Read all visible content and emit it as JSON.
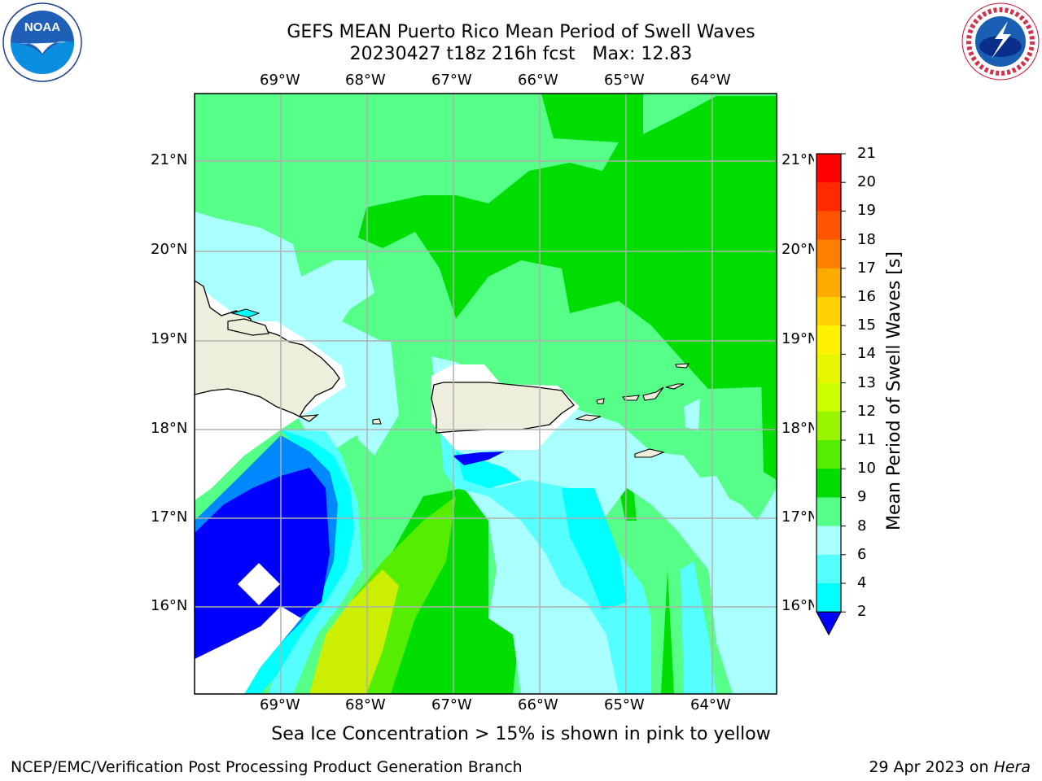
{
  "header": {
    "title_line1": "GEFS MEAN Puerto Rico Mean Period of Swell Waves",
    "title_line2": "20230427 t18z 216h fcst   Max: 12.83"
  },
  "logos": {
    "left": {
      "name": "noaa-logo",
      "text": "NOAA",
      "ring_text": "NATIONAL OCEANIC AND ATMOSPHERIC ADMINISTRATION · U.S. DEPARTMENT OF COMMERCE"
    },
    "right": {
      "name": "nws-logo",
      "ring_text": "NATIONAL WEATHER SERVICE"
    }
  },
  "map": {
    "longitude_labels": [
      "69°W",
      "68°W",
      "67°W",
      "66°W",
      "65°W",
      "64°W"
    ],
    "latitude_labels": [
      "21°N",
      "20°N",
      "19°N",
      "18°N",
      "17°N",
      "16°N"
    ],
    "extent": {
      "lon_min": -70.0,
      "lon_max": -63.25,
      "lat_min": 15.0,
      "lat_max": 21.75
    },
    "variable": "Mean Period of Swell Waves",
    "max_value": 12.83
  },
  "colorbar": {
    "label": "Mean Period of Swell Waves [s]",
    "ticks": [
      "21",
      "20",
      "19",
      "18",
      "17",
      "16",
      "15",
      "14",
      "13",
      "12",
      "11",
      "10",
      "9",
      "8",
      "6",
      "4",
      "2"
    ],
    "colors": [
      "#ff0000",
      "#ff2a00",
      "#ff5500",
      "#ff8000",
      "#ffaa00",
      "#ffd200",
      "#fff200",
      "#e6f500",
      "#ccff00",
      "#99f500",
      "#55ee00",
      "#00dd00",
      "#55ff88",
      "#aaffff",
      "#55ffff",
      "#00ffff",
      "#0088ff",
      "#0000ff"
    ],
    "extend_color": "#0000ff"
  },
  "caption": "Sea Ice Concentration > 15% is shown in pink to yellow",
  "footer": {
    "left": "NCEP/EMC/Verification Post Processing Product Generation Branch",
    "right_prefix": "29 Apr 2023 on ",
    "right_machine": "Hera"
  }
}
